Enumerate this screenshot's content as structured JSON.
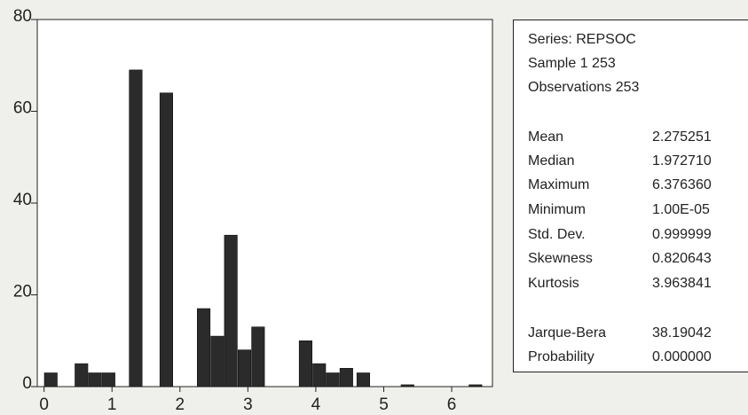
{
  "chart_data": {
    "type": "bar",
    "xlim": [
      -0.1,
      6.6
    ],
    "ylim": [
      0,
      80
    ],
    "xticks": [
      0,
      1,
      2,
      3,
      4,
      5,
      6
    ],
    "yticks": [
      0,
      20,
      40,
      60,
      80
    ],
    "bar_width": 0.19,
    "bar_color": "#2b2b2b",
    "background": "#ffffff",
    "bars": [
      {
        "x": 0.1,
        "value": 3
      },
      {
        "x": 0.55,
        "value": 5
      },
      {
        "x": 0.75,
        "value": 3
      },
      {
        "x": 0.95,
        "value": 3
      },
      {
        "x": 1.35,
        "value": 69
      },
      {
        "x": 1.8,
        "value": 64
      },
      {
        "x": 2.35,
        "value": 17
      },
      {
        "x": 2.55,
        "value": 11
      },
      {
        "x": 2.75,
        "value": 33
      },
      {
        "x": 2.95,
        "value": 8
      },
      {
        "x": 3.15,
        "value": 13
      },
      {
        "x": 3.85,
        "value": 10
      },
      {
        "x": 4.05,
        "value": 5
      },
      {
        "x": 4.25,
        "value": 3
      },
      {
        "x": 4.45,
        "value": 4
      },
      {
        "x": 4.7,
        "value": 3
      },
      {
        "x": 5.35,
        "value": 0.4
      },
      {
        "x": 6.35,
        "value": 0.4
      }
    ]
  },
  "stats": {
    "header": [
      "Series: REPSOC",
      "Sample 1 253",
      "Observations 253"
    ],
    "rows": [
      {
        "label": "Mean",
        "value": "2.275251"
      },
      {
        "label": "Median",
        "value": "1.972710"
      },
      {
        "label": "Maximum",
        "value": "6.376360"
      },
      {
        "label": "Minimum",
        "value": "1.00E-05"
      },
      {
        "label": "Std. Dev.",
        "value": "0.999999"
      },
      {
        "label": "Skewness",
        "value": "0.820643"
      },
      {
        "label": "Kurtosis",
        "value": "3.963841"
      }
    ],
    "test_rows": [
      {
        "label": "Jarque-Bera",
        "value": "38.19042"
      },
      {
        "label": "Probability",
        "value": "0.000000"
      }
    ]
  }
}
